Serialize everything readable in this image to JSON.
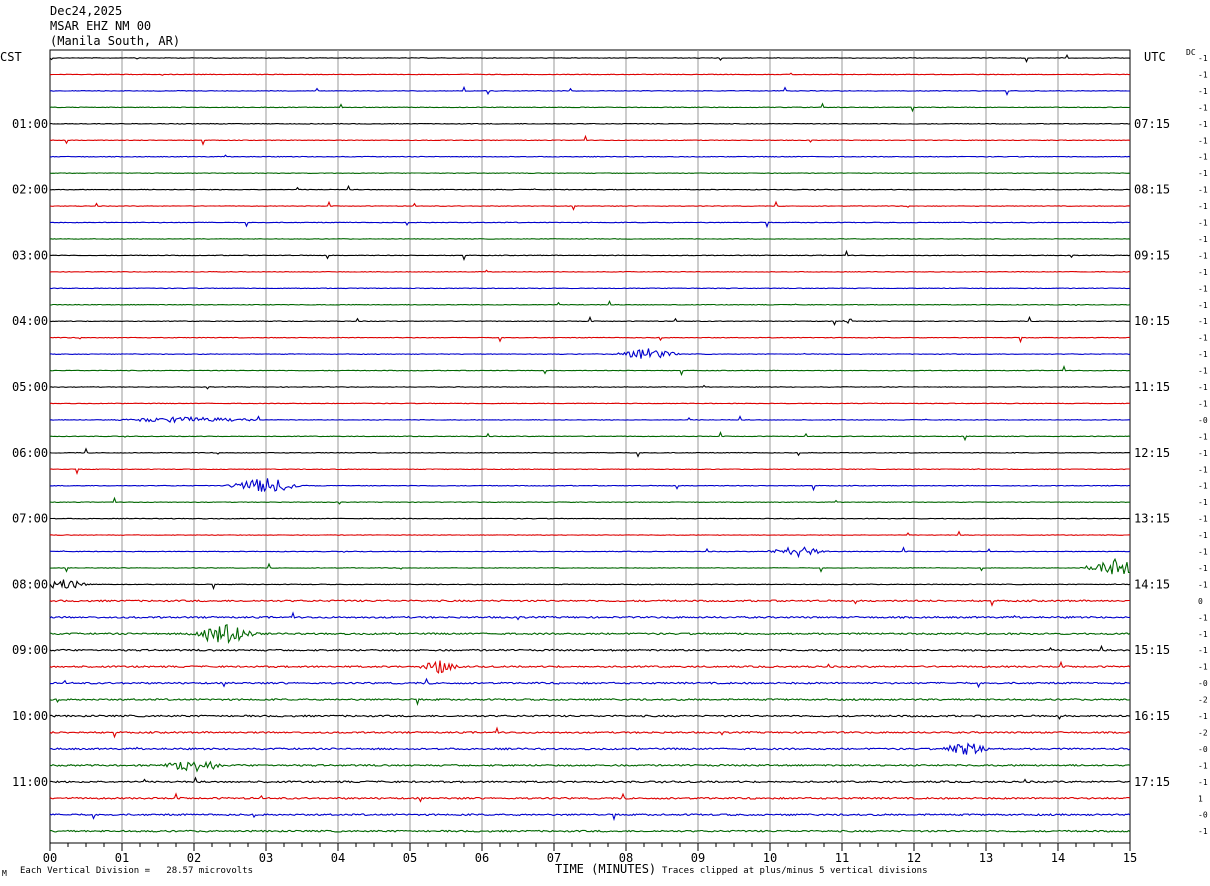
{
  "header": {
    "date": "Dec24,2025",
    "station": "MSAR EHZ NM 00",
    "location": "(Manila South, AR)"
  },
  "corner_labels": {
    "left": "CST",
    "right": "UTC",
    "dc": "DC"
  },
  "footer": {
    "left": "Each Vertical Division =   28.57 microvolts",
    "right": "Traces clipped at plus/minus 5 vertical divisions",
    "mark": "M"
  },
  "colors": {
    "cycle": [
      "#000000",
      "#dd0000",
      "#0000cc",
      "#006600"
    ],
    "grid": "#999999"
  },
  "chart_data": {
    "type": "line",
    "title": "Dec24,2025 MSAR EHZ NM 00 (Manila South, AR)",
    "xlabel": "TIME (MINUTES)",
    "xlim": [
      0,
      15
    ],
    "x_ticks": [
      "00",
      "01",
      "02",
      "03",
      "04",
      "05",
      "06",
      "07",
      "08",
      "09",
      "10",
      "11",
      "12",
      "13",
      "14",
      "15"
    ],
    "rows_per_hour": 4,
    "trace_count": 48,
    "left_hour_labels": [
      "01:00",
      "02:00",
      "03:00",
      "04:00",
      "05:00",
      "06:00",
      "07:00",
      "08:00",
      "09:00",
      "10:00",
      "11:00"
    ],
    "right_hour_labels": [
      "07:15",
      "08:15",
      "09:15",
      "10:15",
      "11:15",
      "12:15",
      "13:15",
      "14:15",
      "15:15",
      "16:15",
      "17:15"
    ],
    "hour_label_rows": [
      4,
      8,
      12,
      16,
      20,
      24,
      28,
      32,
      36,
      40,
      44
    ],
    "dc_offsets": [
      "-1",
      "-1",
      "-1",
      "-1",
      "-1",
      "-1",
      "-1",
      "-1",
      "-1",
      "-1",
      "-1",
      "-1",
      "-1",
      "-1",
      "-1",
      "-1",
      "-1",
      "-1",
      "-1",
      "-1",
      "-1",
      "-1",
      "-0",
      "-1",
      "-1",
      "-1",
      "-1",
      "-1",
      "-1",
      "-1",
      "-1",
      "-1",
      "-1",
      "0",
      "-1",
      "-1",
      "-1",
      "-1",
      "-0",
      "-2",
      "-1",
      "-2",
      "-0",
      "-1",
      "-1",
      "1",
      "-0",
      "-1"
    ],
    "events": [
      {
        "row": 22,
        "minute": 1.9,
        "width": 1.2,
        "amp": 3
      },
      {
        "row": 26,
        "minute": 3.0,
        "width": 0.6,
        "amp": 8
      },
      {
        "row": 30,
        "minute": 10.4,
        "width": 0.5,
        "amp": 5
      },
      {
        "row": 31,
        "minute": 14.8,
        "width": 0.5,
        "amp": 9
      },
      {
        "row": 32,
        "minute": 0.2,
        "width": 0.4,
        "amp": 6
      },
      {
        "row": 35,
        "minute": 2.4,
        "width": 0.5,
        "amp": 12
      },
      {
        "row": 37,
        "minute": 5.4,
        "width": 0.3,
        "amp": 7
      },
      {
        "row": 42,
        "minute": 12.7,
        "width": 0.4,
        "amp": 7
      },
      {
        "row": 43,
        "minute": 2.0,
        "width": 0.5,
        "amp": 7
      },
      {
        "row": 18,
        "minute": 8.3,
        "width": 0.5,
        "amp": 6
      },
      {
        "row": 16,
        "minute": 11.1,
        "width": 0.1,
        "amp": 4
      }
    ]
  }
}
